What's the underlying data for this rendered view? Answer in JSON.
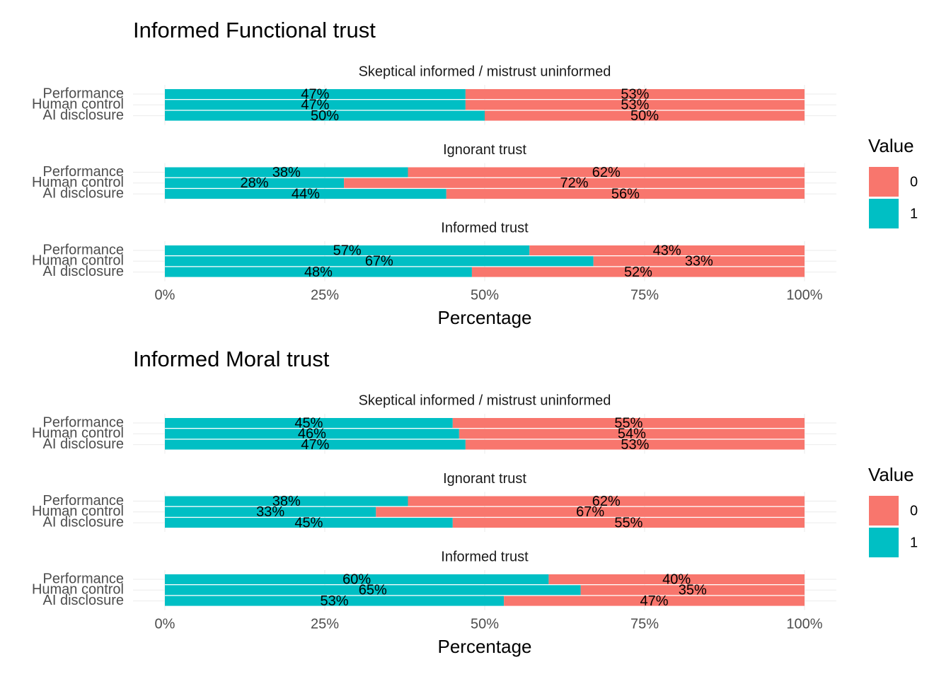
{
  "chart_data": [
    {
      "type": "stacked-bar",
      "title": "Informed Functional trust",
      "x_label": "Percentage",
      "legend_title": "Value",
      "series": [
        {
          "name": "0",
          "color": "#f8766d"
        },
        {
          "name": "1",
          "color": "#00bfc4"
        }
      ],
      "xlim": [
        0,
        100
      ],
      "xticks": [
        {
          "value": 0,
          "label": "0%"
        },
        {
          "value": 25,
          "label": "25%"
        },
        {
          "value": 50,
          "label": "50%"
        },
        {
          "value": 75,
          "label": "75%"
        },
        {
          "value": 100,
          "label": "100%"
        }
      ],
      "grid": true,
      "facets": [
        {
          "title": "Skeptical informed / mistrust uninformed",
          "categories": [
            "Performance",
            "Human control",
            "AI disclosure"
          ],
          "series": [
            {
              "values": [
                53,
                53,
                50
              ],
              "value_labels": [
                "53%",
                "53%",
                "50%"
              ]
            },
            {
              "values": [
                47,
                47,
                50
              ],
              "value_labels": [
                "47%",
                "47%",
                "50%"
              ]
            }
          ]
        },
        {
          "title": "Ignorant trust",
          "categories": [
            "Performance",
            "Human control",
            "AI disclosure"
          ],
          "series": [
            {
              "values": [
                62,
                72,
                56
              ],
              "value_labels": [
                "62%",
                "72%",
                "56%"
              ]
            },
            {
              "values": [
                38,
                28,
                44
              ],
              "value_labels": [
                "38%",
                "28%",
                "44%"
              ]
            }
          ]
        },
        {
          "title": "Informed trust",
          "categories": [
            "Performance",
            "Human control",
            "AI disclosure"
          ],
          "series": [
            {
              "values": [
                43,
                33,
                52
              ],
              "value_labels": [
                "43%",
                "33%",
                "52%"
              ]
            },
            {
              "values": [
                57,
                67,
                48
              ],
              "value_labels": [
                "57%",
                "67%",
                "48%"
              ]
            }
          ]
        }
      ]
    },
    {
      "type": "stacked-bar",
      "title": "Informed Moral trust",
      "x_label": "Percentage",
      "legend_title": "Value",
      "series": [
        {
          "name": "0",
          "color": "#f8766d"
        },
        {
          "name": "1",
          "color": "#00bfc4"
        }
      ],
      "xlim": [
        0,
        100
      ],
      "xticks": [
        {
          "value": 0,
          "label": "0%"
        },
        {
          "value": 25,
          "label": "25%"
        },
        {
          "value": 50,
          "label": "50%"
        },
        {
          "value": 75,
          "label": "75%"
        },
        {
          "value": 100,
          "label": "100%"
        }
      ],
      "grid": true,
      "facets": [
        {
          "title": "Skeptical informed / mistrust uninformed",
          "categories": [
            "Performance",
            "Human control",
            "AI disclosure"
          ],
          "series": [
            {
              "values": [
                55,
                54,
                53
              ],
              "value_labels": [
                "55%",
                "54%",
                "53%"
              ]
            },
            {
              "values": [
                45,
                46,
                47
              ],
              "value_labels": [
                "45%",
                "46%",
                "47%"
              ]
            }
          ]
        },
        {
          "title": "Ignorant trust",
          "categories": [
            "Performance",
            "Human control",
            "AI disclosure"
          ],
          "series": [
            {
              "values": [
                62,
                67,
                55
              ],
              "value_labels": [
                "62%",
                "67%",
                "55%"
              ]
            },
            {
              "values": [
                38,
                33,
                45
              ],
              "value_labels": [
                "38%",
                "33%",
                "45%"
              ]
            }
          ]
        },
        {
          "title": "Informed trust",
          "categories": [
            "Performance",
            "Human control",
            "AI disclosure"
          ],
          "series": [
            {
              "values": [
                40,
                35,
                47
              ],
              "value_labels": [
                "40%",
                "35%",
                "47%"
              ]
            },
            {
              "values": [
                60,
                65,
                53
              ],
              "value_labels": [
                "60%",
                "65%",
                "53%"
              ]
            }
          ]
        }
      ]
    }
  ]
}
